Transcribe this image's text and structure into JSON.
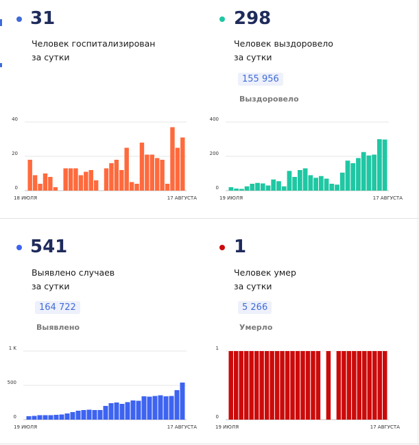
{
  "panels": [
    {
      "id": "hospitalized",
      "value": "31",
      "label_line1": "Человек госпитализирован",
      "label_line2": "за сутки",
      "color": "#ff6a3d",
      "dot_color": "#3f6bd8"
    },
    {
      "id": "recovered",
      "value": "298",
      "label_line1": "Человек выздоровело",
      "label_line2": "за сутки",
      "total": "155 956",
      "total_label": "Выздоровело",
      "color": "#1fc7a3",
      "dot_color": "#1fc7a3"
    },
    {
      "id": "cases",
      "value": "541",
      "label_line1": "Выявлено случаев",
      "label_line2": "за сутки",
      "total": "164 722",
      "total_label": "Выявлено",
      "color": "#3d63f0",
      "dot_color": "#3d63f0"
    },
    {
      "id": "deaths",
      "value": "1",
      "label_line1": "Человек умер",
      "label_line2": "за сутки",
      "total": "5 266",
      "total_label": "Умерло",
      "color": "#cc0a0a",
      "dot_color": "#cc0a0a"
    }
  ],
  "chart_data": [
    {
      "type": "bar",
      "panel": "hospitalized",
      "x_start_label": "18 ИЮЛЯ",
      "x_end_label": "17 АВГУСТА",
      "y_ticks": [
        0,
        20,
        40
      ],
      "y_tick_labels": [
        "0",
        "20",
        "40"
      ],
      "ylim": [
        0,
        40
      ],
      "values": [
        18,
        9,
        4,
        10,
        8,
        2,
        null,
        13,
        13,
        13,
        9,
        11,
        12,
        6,
        null,
        13,
        16,
        18,
        12,
        25,
        5,
        4,
        28,
        21,
        21,
        19,
        18,
        4,
        37,
        25,
        31
      ],
      "color": "#ff6a3d"
    },
    {
      "type": "bar",
      "panel": "recovered",
      "x_start_label": "19 ИЮЛЯ",
      "x_end_label": "17 АВГУСТА",
      "y_ticks": [
        0,
        200,
        400
      ],
      "y_tick_labels": [
        "0",
        "200",
        "400"
      ],
      "ylim": [
        0,
        400
      ],
      "values": [
        20,
        12,
        10,
        25,
        40,
        45,
        42,
        30,
        65,
        55,
        25,
        115,
        80,
        120,
        130,
        90,
        75,
        85,
        70,
        40,
        35,
        105,
        175,
        160,
        190,
        225,
        205,
        210,
        300,
        298
      ],
      "color": "#1fc7a3"
    },
    {
      "type": "bar",
      "panel": "cases",
      "x_start_label": "19 ИЮЛЯ",
      "x_end_label": "17 АВГУСТА",
      "y_ticks": [
        0,
        500,
        1000
      ],
      "y_tick_labels": [
        "0",
        "500",
        "1 K"
      ],
      "ylim": [
        0,
        1000
      ],
      "values": [
        50,
        55,
        65,
        65,
        65,
        70,
        75,
        90,
        110,
        130,
        140,
        145,
        140,
        140,
        200,
        240,
        250,
        230,
        255,
        280,
        275,
        340,
        335,
        345,
        355,
        340,
        345,
        430,
        541
      ],
      "color": "#3d63f0"
    },
    {
      "type": "bar",
      "panel": "deaths",
      "x_start_label": "19 ИЮЛЯ",
      "x_end_label": "17 АВГУСТА",
      "y_ticks": [
        0,
        1
      ],
      "y_tick_labels": [
        "0",
        "1"
      ],
      "ylim": [
        0,
        1
      ],
      "values": [
        1,
        1,
        1,
        1,
        1,
        1,
        1,
        1,
        1,
        1,
        1,
        1,
        1,
        1,
        1,
        1,
        1,
        1,
        0,
        1,
        0,
        1,
        1,
        1,
        1,
        1,
        1,
        1,
        1,
        1,
        1
      ],
      "color": "#cc0a0a"
    }
  ]
}
